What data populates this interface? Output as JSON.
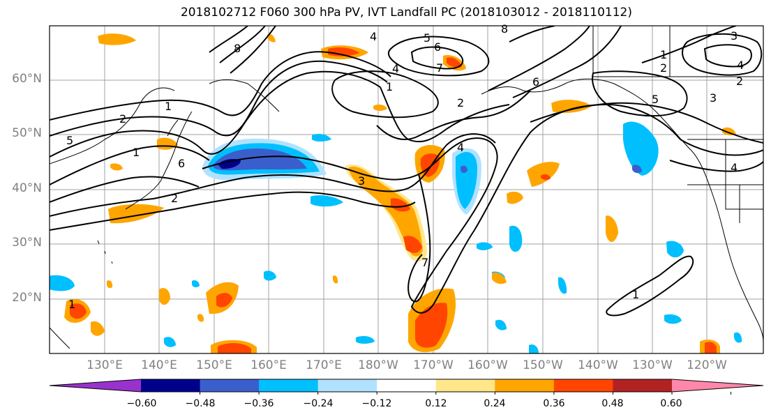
{
  "title": "2018102712 F060 300 hPa PV, IVT Landfall PC (2018103012 - 2018110112)",
  "lat_labels": [
    "60°N",
    "50°N",
    "40°N",
    "30°N",
    "20°N"
  ],
  "lon_labels": [
    "130°E",
    "140°E",
    "150°E",
    "160°E",
    "170°E",
    "180°W",
    "170°W",
    "160°W",
    "150°W",
    "140°W",
    "130°W",
    "120°W"
  ],
  "contour_labels": [
    "4",
    "5",
    "6",
    "7",
    "4",
    "2",
    "1",
    "2",
    "1",
    "5",
    "2",
    "1",
    "6",
    "8",
    "8",
    "6",
    "4",
    "3",
    "1",
    "2",
    "4",
    "3",
    "4",
    "5",
    "1",
    "3",
    "2",
    "7",
    "1"
  ],
  "colorbar": {
    "ticks": [
      "−0.60",
      "−0.48",
      "−0.36",
      "−0.24",
      "−0.12",
      "0.12",
      "0.24",
      "0.36",
      "0.48",
      "0.60"
    ],
    "colors": [
      "#9932cc",
      "#00008b",
      "#3a5fcd",
      "#00bfff",
      "#b0e2ff",
      "#ffffff",
      "#ffe78a",
      "#ffa500",
      "#ff4500",
      "#b22222",
      "#ff88aa"
    ]
  }
}
